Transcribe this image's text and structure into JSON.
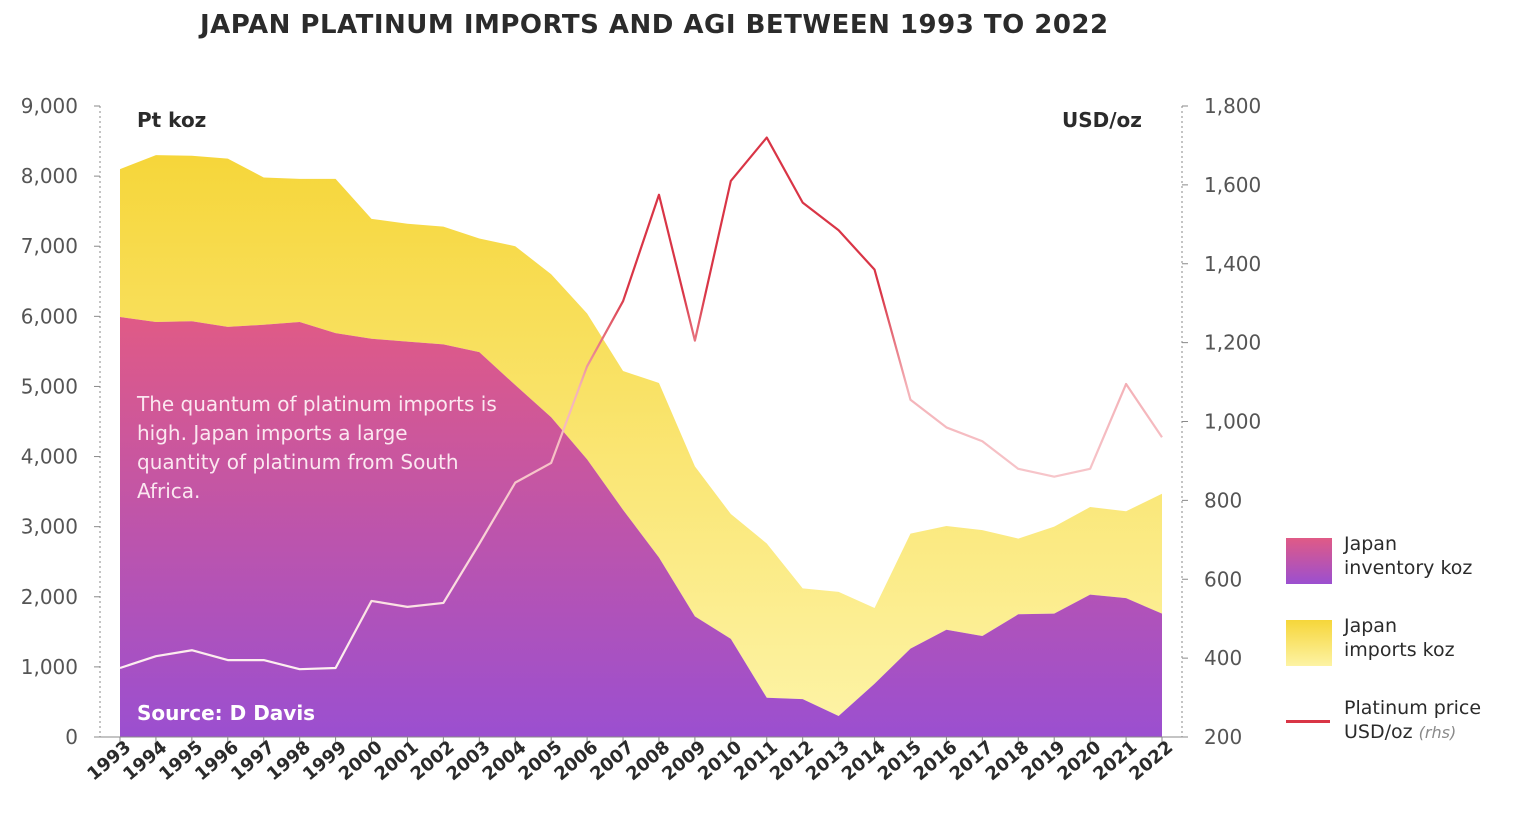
{
  "chart_data": {
    "type": "area",
    "title": "JAPAN PLATINUM IMPORTS AND AGI BETWEEN 1993 TO 2022",
    "ylabel_left": "Pt koz",
    "ylabel_right": "USD/oz",
    "ylim_left": [
      0,
      9000
    ],
    "ylim_right": [
      200,
      1800
    ],
    "yticks_left": [
      "0",
      "1,000",
      "2,000",
      "3,000",
      "4,000",
      "5,000",
      "6,000",
      "7,000",
      "8,000",
      "9,000"
    ],
    "yticks_right": [
      "200",
      "400",
      "600",
      "800",
      "1,000",
      "1,200",
      "1,400",
      "1,600",
      "1,800"
    ],
    "categories": [
      "1993",
      "1994",
      "1995",
      "1996",
      "1997",
      "1998",
      "1999",
      "2000",
      "2001",
      "2002",
      "2003",
      "2004",
      "2005",
      "2006",
      "2007",
      "2008",
      "2009",
      "2010",
      "2011",
      "2012",
      "2013",
      "2014",
      "2015",
      "2016",
      "2017",
      "2018",
      "2019",
      "2020",
      "2021",
      "2022"
    ],
    "series": [
      {
        "name": "Japan inventory koz",
        "kind": "stacked-area",
        "values": [
          5990,
          5920,
          5930,
          5850,
          5880,
          5920,
          5760,
          5680,
          5640,
          5600,
          5490,
          5020,
          4560,
          3960,
          3240,
          2560,
          1720,
          1400,
          560,
          540,
          300,
          760,
          1260,
          1530,
          1440,
          1750,
          1760,
          2030,
          1980,
          1760
        ]
      },
      {
        "name": "Japan imports koz",
        "kind": "stacked-area",
        "values": [
          2110,
          2380,
          2360,
          2400,
          2100,
          2040,
          2200,
          1710,
          1680,
          1680,
          1620,
          1980,
          2040,
          2080,
          1980,
          2490,
          2140,
          1780,
          2200,
          1580,
          1770,
          1080,
          1640,
          1480,
          1510,
          1080,
          1240,
          1250,
          1240,
          1710
        ]
      },
      {
        "name": "Platinum price USD/oz",
        "kind": "line",
        "axis": "right",
        "values": [
          375,
          405,
          420,
          395,
          395,
          372,
          375,
          545,
          530,
          540,
          690,
          845,
          895,
          1140,
          1305,
          1575,
          1205,
          1610,
          1720,
          1555,
          1485,
          1385,
          1055,
          985,
          950,
          880,
          860,
          880,
          1095,
          960
        ]
      }
    ],
    "legend": [
      {
        "line1": "Japan",
        "line2": "inventory koz"
      },
      {
        "line1": "Japan",
        "line2": "imports koz"
      },
      {
        "line1": "Platinum price",
        "line2": "USD/oz",
        "suffix": "(rhs)"
      }
    ],
    "annotation": "The quantum of platinum imports is high. Japan imports a large quantity of platinum from South Africa.",
    "source": "Source: D Davis",
    "colors": {
      "inventory_top": "#e05a86",
      "inventory_bottom": "#9b4fd0",
      "imports_top": "#f6d63a",
      "imports_bottom": "#fdf3a4",
      "price_line": "#d93546",
      "axis": "#8a8a8a",
      "text": "#2b2b2b"
    }
  }
}
